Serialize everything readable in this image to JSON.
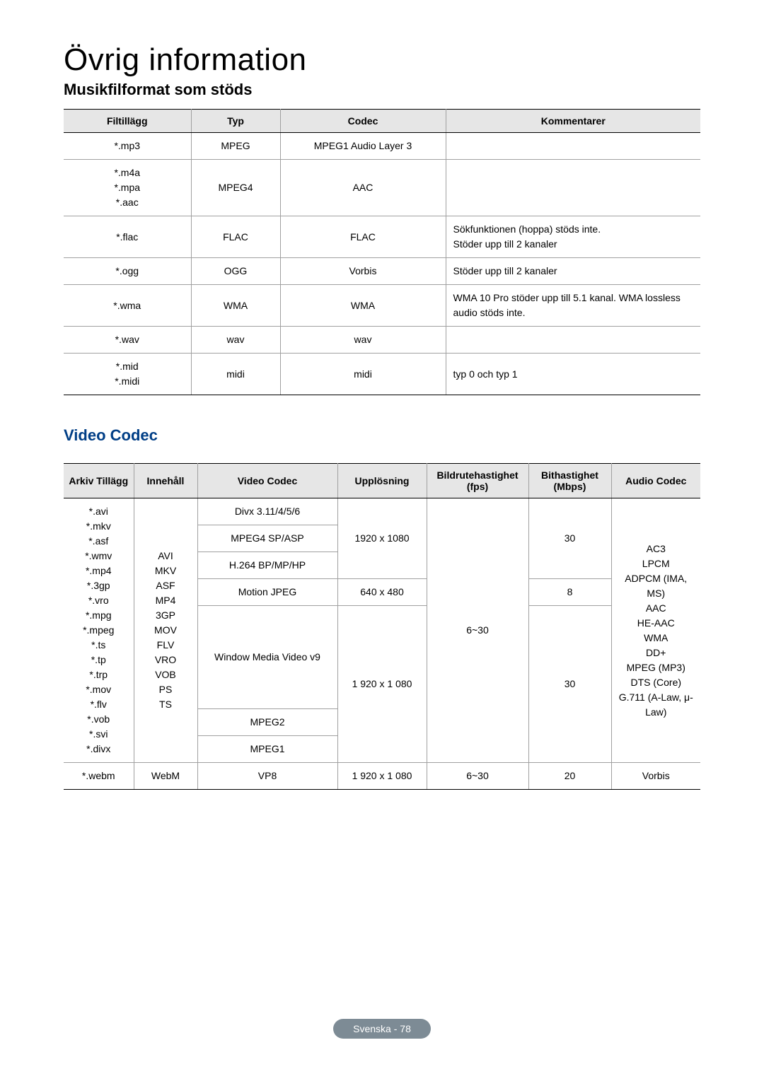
{
  "main_title": "Övrig information",
  "music": {
    "heading": "Musikfilformat som stöds",
    "headers": [
      "Filtillägg",
      "Typ",
      "Codec",
      "Kommentarer"
    ],
    "rows": [
      {
        "ext": "*.mp3",
        "type": "MPEG",
        "codec": "MPEG1 Audio Layer 3",
        "comment": ""
      },
      {
        "ext": "*.m4a\n*.mpa\n*.aac",
        "type": "MPEG4",
        "codec": "AAC",
        "comment": ""
      },
      {
        "ext": "*.flac",
        "type": "FLAC",
        "codec": "FLAC",
        "comment": "Sökfunktionen (hoppa) stöds inte.\nStöder upp till 2 kanaler"
      },
      {
        "ext": "*.ogg",
        "type": "OGG",
        "codec": "Vorbis",
        "comment": "Stöder upp till 2 kanaler"
      },
      {
        "ext": "*.wma",
        "type": "WMA",
        "codec": "WMA",
        "comment": "WMA 10 Pro stöder upp till 5.1 kanal. WMA lossless audio stöds inte."
      },
      {
        "ext": "*.wav",
        "type": "wav",
        "codec": "wav",
        "comment": ""
      },
      {
        "ext": "*.mid\n*.midi",
        "type": "midi",
        "codec": "midi",
        "comment": "typ 0 och typ 1"
      }
    ]
  },
  "video": {
    "heading": "Video Codec",
    "headers": [
      "Arkiv Tillägg",
      "Innehåll",
      "Video Codec",
      "Upplösning",
      "Bildrutehastighet (fps)",
      "Bithastighet (Mbps)",
      "Audio Codec"
    ],
    "ext_group": "*.avi\n*.mkv\n*.asf\n*.wmv\n*.mp4\n*.3gp\n*.vro\n*.mpg\n*.mpeg\n*.ts\n*.tp\n*.trp\n*.mov\n*.flv\n*.vob\n*.svi\n*.divx",
    "container_group": "AVI\nMKV\nASF\nMP4\n3GP\nMOV\nFLV\nVRO\nVOB\nPS\nTS",
    "codecs": {
      "divx": "Divx 3.11/4/5/6",
      "mpeg4": "MPEG4 SP/ASP",
      "h264": "H.264 BP/MP/HP",
      "mjpeg": "Motion JPEG",
      "wmv": "Window Media Video v9",
      "mpeg2": "MPEG2",
      "mpeg1": "MPEG1"
    },
    "res": {
      "hd": "1920 x 1080",
      "sd": "640 x 480",
      "hd2": "1 920 x 1 080"
    },
    "fps": "6~30",
    "bitrate": {
      "thirty": "30",
      "eight": "8"
    },
    "audio_group": "AC3\nLPCM\nADPCM (IMA, MS)\nAAC\nHE-AAC\nWMA\nDD+\nMPEG (MP3)\nDTS (Core)\nG.711 (A-Law, μ-Law)",
    "webm": {
      "ext": "*.webm",
      "container": "WebM",
      "codec": "VP8",
      "res": "1 920 x 1 080",
      "fps": "6~30",
      "bitrate": "20",
      "audio": "Vorbis"
    }
  },
  "footer": "Svenska - 78"
}
